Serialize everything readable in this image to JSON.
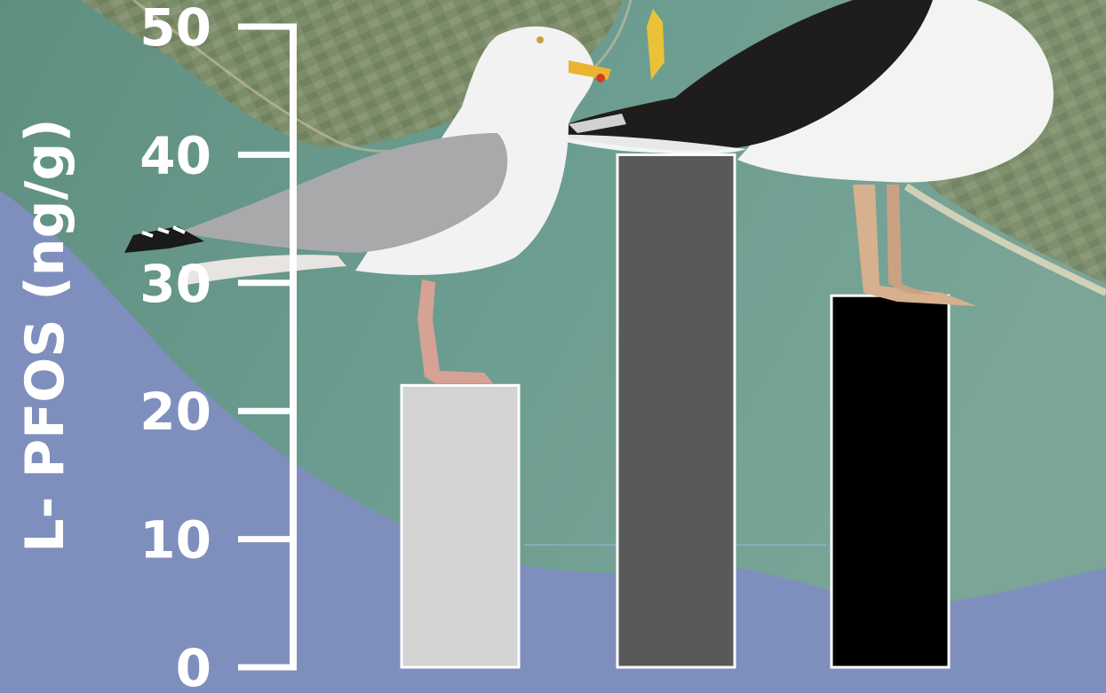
{
  "chart_data": {
    "type": "bar",
    "title": "",
    "xlabel": "",
    "ylabel": "L- PFOS (ng/g)",
    "ylim": [
      0,
      50
    ],
    "yticks": [
      0,
      10,
      20,
      30,
      40,
      50
    ],
    "categories": [
      "",
      "",
      ""
    ],
    "values": [
      22,
      40,
      29
    ],
    "bar_colors": [
      "#d3d3d3",
      "#595959",
      "#000000"
    ],
    "bar_edge_color": "#ffffff",
    "axis_color": "#ffffff",
    "grid": false,
    "legend": "none",
    "background_photo": "aerial coastline with herring gull and great black-backed gull standing on bars"
  }
}
